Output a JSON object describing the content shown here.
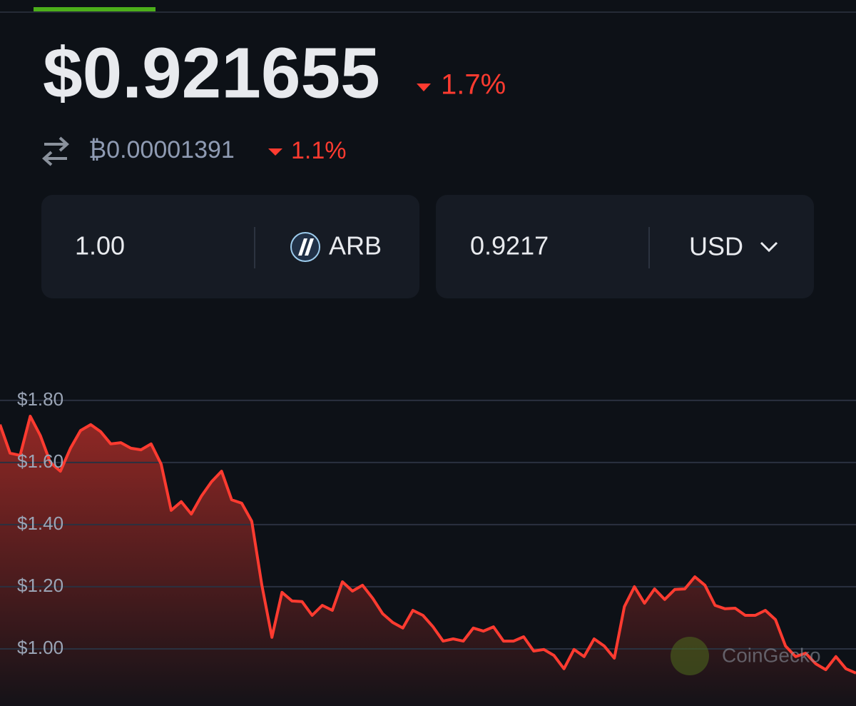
{
  "header": {
    "price": "$0.921655",
    "change": "1.7%",
    "btc_price": "₿0.00001391",
    "btc_change": "1.1%"
  },
  "converter": {
    "amount": "1.00",
    "coin": "ARB",
    "converted": "0.9217",
    "currency": "USD"
  },
  "watermark": "CoinGecko",
  "chart_data": {
    "type": "line",
    "color": "#ff3b30",
    "values": [
      1.722,
      1.63,
      1.623,
      1.749,
      1.687,
      1.6,
      1.572,
      1.646,
      1.703,
      1.722,
      1.699,
      1.66,
      1.664,
      1.646,
      1.641,
      1.66,
      1.595,
      1.446,
      1.474,
      1.434,
      1.492,
      1.538,
      1.572,
      1.48,
      1.469,
      1.411,
      1.205,
      1.037,
      1.182,
      1.154,
      1.152,
      1.108,
      1.14,
      1.124,
      1.216,
      1.186,
      1.205,
      1.163,
      1.113,
      1.085,
      1.067,
      1.124,
      1.108,
      1.071,
      1.025,
      1.032,
      1.025,
      1.067,
      1.057,
      1.071,
      1.025,
      1.025,
      1.039,
      0.993,
      0.998,
      0.979,
      0.936,
      0.998,
      0.975,
      1.032,
      1.009,
      0.97,
      1.136,
      1.2,
      1.147,
      1.193,
      1.159,
      1.191,
      1.193,
      1.232,
      1.205,
      1.14,
      1.129,
      1.131,
      1.108,
      1.108,
      1.124,
      1.094,
      1.009,
      0.975,
      0.986,
      0.952,
      0.933,
      0.975,
      0.936,
      0.922
    ],
    "ylim": [
      0.816,
      1.848
    ],
    "yticks": [
      {
        "value": 1.0,
        "label": "$1.00"
      },
      {
        "value": 1.2,
        "label": "$1.20"
      },
      {
        "value": 1.4,
        "label": "$1.40"
      },
      {
        "value": 1.6,
        "label": "$1.60"
      },
      {
        "value": 1.8,
        "label": "$1.80"
      }
    ],
    "grid": true
  }
}
